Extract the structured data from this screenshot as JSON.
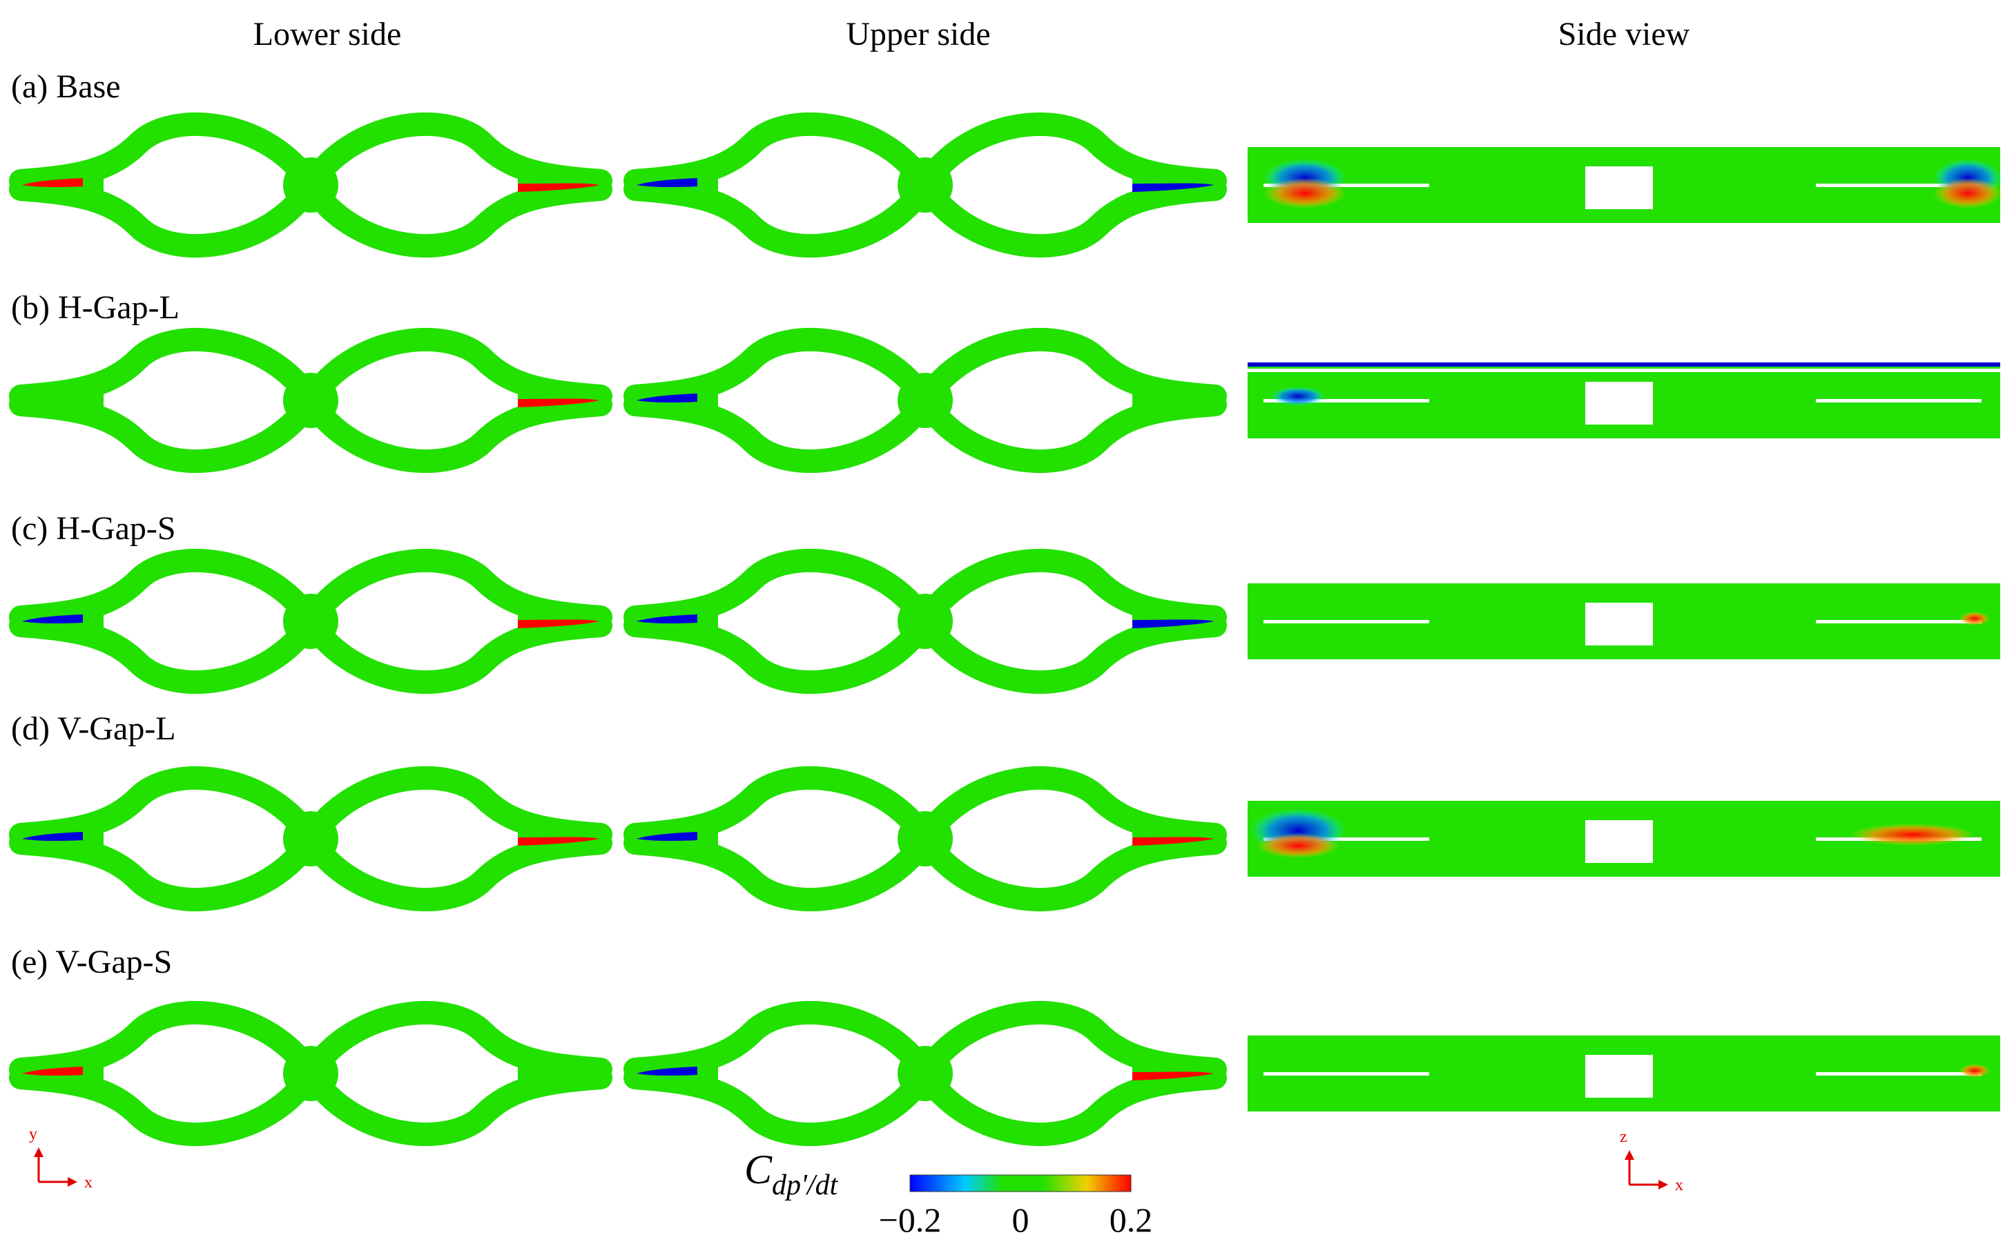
{
  "columns": [
    "Lower side",
    "Upper side",
    "Side view"
  ],
  "rows": [
    {
      "label": "(a) Base"
    },
    {
      "label": "(b) H-Gap-L"
    },
    {
      "label": "(c) H-Gap-S"
    },
    {
      "label": "(d) V-Gap-L"
    },
    {
      "label": "(e) V-Gap-S"
    }
  ],
  "axes_left": {
    "vertical": "y",
    "horizontal": "x"
  },
  "axes_right": {
    "vertical": "z",
    "horizontal": "x"
  },
  "colorbar": {
    "symbol": "C",
    "subscript": "dp'/dt",
    "ticks": [
      "−0.2",
      "0",
      "0.2"
    ],
    "min": -0.2,
    "max": 0.2,
    "colors": [
      "#0000ff",
      "#00ccff",
      "#22e000",
      "#22e000",
      "#f0d000",
      "#ff0000"
    ]
  },
  "colors": {
    "field": "#22e000",
    "positive": "#ff0000",
    "negative": "#0000dd",
    "axis_arrow": "#e00000"
  }
}
